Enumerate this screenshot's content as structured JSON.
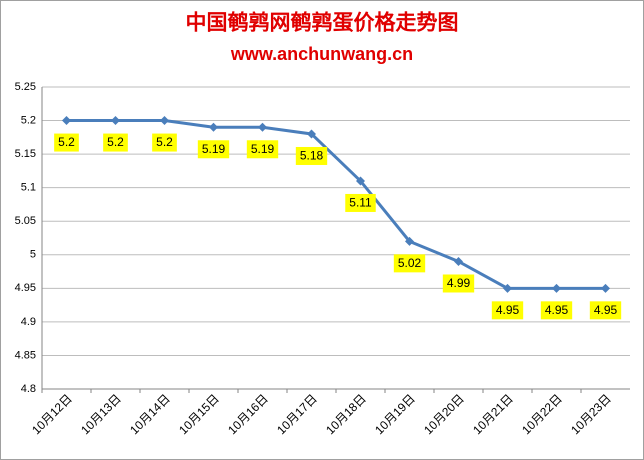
{
  "chart_data": {
    "type": "line",
    "title": "中国鹌鹑网鹌鹑蛋价格走势图",
    "subtitle": "www.anchunwang.cn",
    "categories": [
      "10月12日",
      "10月13日",
      "10月14日",
      "10月15日",
      "10月16日",
      "10月17日",
      "10月18日",
      "10月19日",
      "10月20日",
      "10月21日",
      "10月22日",
      "10月23日"
    ],
    "values": [
      5.2,
      5.2,
      5.2,
      5.19,
      5.19,
      5.18,
      5.11,
      5.02,
      4.99,
      4.95,
      4.95,
      4.95
    ],
    "color": "#4a7ebb",
    "ylim": [
      4.8,
      5.25
    ],
    "yticks": [
      4.8,
      4.85,
      4.9,
      4.95,
      5,
      5.05,
      5.1,
      5.15,
      5.2,
      5.25
    ],
    "grid": true
  }
}
